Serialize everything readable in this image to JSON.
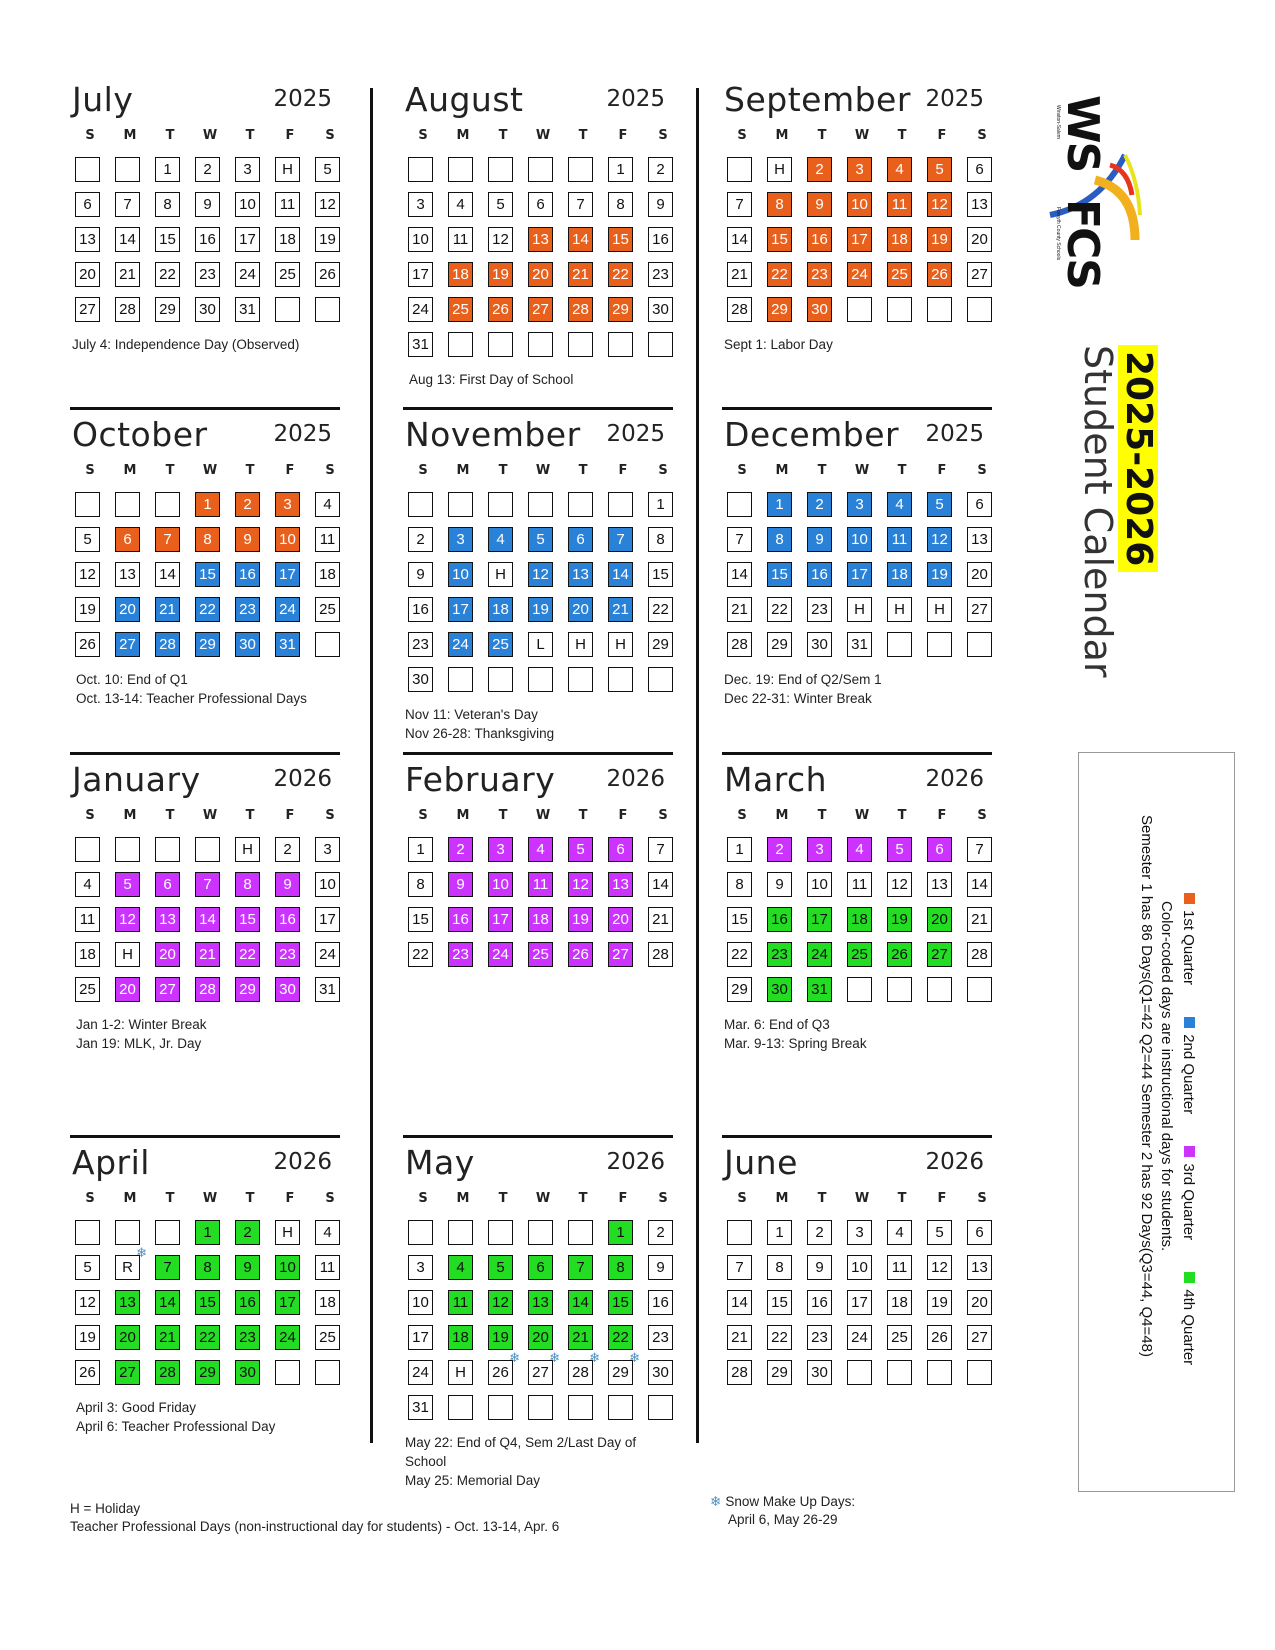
{
  "title": {
    "years": "2025-2026",
    "label": "Student Calendar"
  },
  "logo": {
    "ws": "WS",
    "fcs": "FCS",
    "tag1": "Winston-Salem",
    "tag2": "Forsyth County Schools"
  },
  "colors": {
    "q1": "#e8601c",
    "q2": "#2a82d8",
    "q3": "#cc33ff",
    "q4": "#22dd22",
    "highlight": "#ffff00"
  },
  "dow_labels": [
    "S",
    "M",
    "T",
    "W",
    "T",
    "F",
    "S"
  ],
  "months": [
    {
      "name": "July",
      "year": "2025",
      "first_dow": 2,
      "days": 31,
      "q1": [],
      "q2": [],
      "q3": [],
      "q4": [],
      "labels": {
        "4": "H"
      },
      "snow": [],
      "notes": [
        "July 4: Independence Day (Observed)"
      ]
    },
    {
      "name": "August",
      "year": "2025",
      "first_dow": 5,
      "days": 31,
      "q1": [
        13,
        14,
        15,
        18,
        19,
        20,
        21,
        22,
        25,
        26,
        27,
        28,
        29
      ],
      "q2": [],
      "q3": [],
      "q4": [],
      "labels": {},
      "snow": [],
      "notes": [
        "Aug 13: First Day of School"
      ]
    },
    {
      "name": "September",
      "year": "2025",
      "first_dow": 1,
      "days": 30,
      "q1": [
        2,
        3,
        4,
        5,
        8,
        9,
        10,
        11,
        12,
        15,
        16,
        17,
        18,
        19,
        22,
        23,
        24,
        25,
        26,
        29,
        30
      ],
      "q2": [],
      "q3": [],
      "q4": [],
      "labels": {
        "1": "H"
      },
      "snow": [],
      "notes": [
        "Sept 1: Labor Day"
      ]
    },
    {
      "name": "October",
      "year": "2025",
      "first_dow": 3,
      "days": 31,
      "q1": [
        1,
        2,
        3,
        6,
        7,
        8,
        9,
        10
      ],
      "q2": [
        15,
        16,
        17,
        20,
        21,
        22,
        23,
        24,
        27,
        28,
        29,
        30,
        31
      ],
      "q3": [],
      "q4": [],
      "labels": {},
      "snow": [],
      "notes": [
        "Oct. 10: End of Q1",
        "Oct. 13-14: Teacher Professional Days"
      ]
    },
    {
      "name": "November",
      "year": "2025",
      "first_dow": 6,
      "days": 30,
      "q1": [],
      "q2": [
        3,
        4,
        5,
        6,
        7,
        10,
        12,
        13,
        14,
        17,
        18,
        19,
        20,
        21,
        24,
        25
      ],
      "q3": [],
      "q4": [],
      "labels": {
        "11": "H",
        "26": "L",
        "27": "H",
        "28": "H"
      },
      "snow": [],
      "notes": [
        "Nov 11: Veteran's Day",
        "Nov 26-28: Thanksgiving"
      ]
    },
    {
      "name": "December",
      "year": "2025",
      "first_dow": 1,
      "days": 31,
      "q1": [],
      "q2": [
        1,
        2,
        3,
        4,
        5,
        8,
        9,
        10,
        11,
        12,
        15,
        16,
        17,
        18,
        19
      ],
      "q3": [],
      "q4": [],
      "labels": {
        "24": "H",
        "25": "H",
        "26": "H"
      },
      "snow": [],
      "notes": [
        "Dec. 19: End of Q2/Sem 1",
        "Dec 22-31: Winter Break"
      ]
    },
    {
      "name": "January",
      "year": "2026",
      "first_dow": 4,
      "days": 31,
      "q1": [],
      "q2": [],
      "q3": [
        5,
        6,
        7,
        8,
        9,
        12,
        13,
        14,
        15,
        16,
        20,
        21,
        22,
        23,
        26,
        27,
        28,
        29,
        30
      ],
      "q4": [],
      "labels": {
        "1": "H",
        "19": "H",
        "26": "20"
      },
      "snow": [],
      "notes": [
        "Jan 1-2: Winter Break",
        "Jan 19: MLK, Jr. Day"
      ]
    },
    {
      "name": "February",
      "year": "2026",
      "first_dow": 0,
      "days": 28,
      "q1": [],
      "q2": [],
      "q3": [
        2,
        3,
        4,
        5,
        6,
        9,
        10,
        11,
        12,
        13,
        16,
        17,
        18,
        19,
        20,
        23,
        24,
        25,
        26,
        27
      ],
      "q4": [],
      "labels": {},
      "snow": [],
      "notes": []
    },
    {
      "name": "March",
      "year": "2026",
      "first_dow": 0,
      "days": 31,
      "q1": [],
      "q2": [],
      "q3": [
        2,
        3,
        4,
        5,
        6
      ],
      "q4": [
        16,
        17,
        18,
        19,
        20,
        23,
        24,
        25,
        26,
        27,
        30,
        31
      ],
      "labels": {},
      "snow": [],
      "notes": [
        "Mar. 6: End of Q3",
        "Mar. 9-13: Spring Break"
      ]
    },
    {
      "name": "April",
      "year": "2026",
      "first_dow": 3,
      "days": 30,
      "q1": [],
      "q2": [],
      "q3": [],
      "q4": [
        1,
        2,
        7,
        8,
        9,
        10,
        13,
        14,
        15,
        16,
        17,
        20,
        21,
        22,
        23,
        24,
        27,
        28,
        29,
        30
      ],
      "labels": {
        "3": "H",
        "6": "R"
      },
      "snow": [
        6
      ],
      "notes": [
        "April 3: Good Friday",
        "April 6: Teacher Professional Day"
      ]
    },
    {
      "name": "May",
      "year": "2026",
      "first_dow": 5,
      "days": 31,
      "q1": [],
      "q2": [],
      "q3": [],
      "q4": [
        1,
        4,
        5,
        6,
        7,
        8,
        11,
        12,
        13,
        14,
        15,
        18,
        19,
        20,
        21,
        22
      ],
      "labels": {
        "25": "H"
      },
      "snow": [
        26,
        27,
        28,
        29
      ],
      "notes": [
        "May 22: End of Q4, Sem 2/Last Day of",
        "School",
        "May 25: Memorial Day"
      ]
    },
    {
      "name": "June",
      "year": "2026",
      "first_dow": 1,
      "days": 30,
      "q1": [],
      "q2": [],
      "q3": [],
      "q4": [],
      "labels": {},
      "snow": [],
      "notes": []
    }
  ],
  "legend": {
    "q1": "1st Quarter",
    "q2": "2nd Quarter",
    "q3": "3rd Quarter",
    "q4": "4th Quarter",
    "line2": "Color-coded days are instructional days for students.",
    "line3": "Semester 1 has 86 Days(Q1=42 Q2=44  Semester 2 has 92 Days(Q3=44, Q4=48)"
  },
  "footer": {
    "holiday": "H = Holiday",
    "prof": "Teacher Professional Days (non-instructional day for students) - Oct. 13-14, Apr. 6",
    "snow_title": "Snow Make Up Days:",
    "snow_dates": "April 6, May 26-29"
  }
}
